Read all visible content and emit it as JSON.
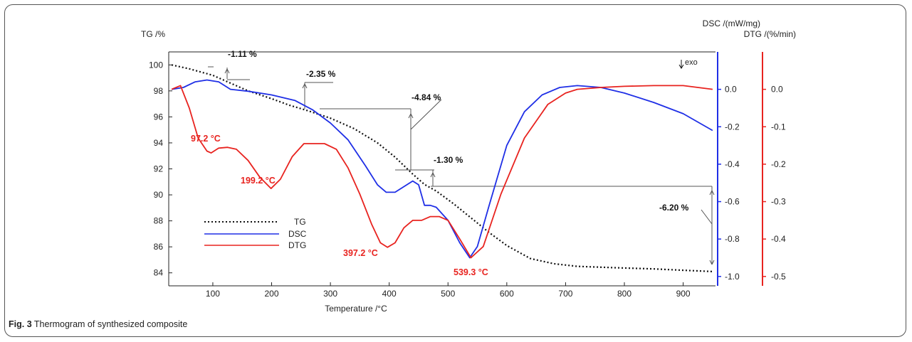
{
  "caption": {
    "label": "Fig. 3",
    "text": "Thermogram of synthesized composite"
  },
  "colors": {
    "tg": "#111111",
    "dsc": "#1f2fe6",
    "dtg": "#e8231f",
    "axis": "#222222"
  },
  "chart_data": {
    "type": "line",
    "xlabel": "Temperature /°C",
    "x_ticks": [
      100,
      200,
      300,
      400,
      500,
      600,
      700,
      800,
      900
    ],
    "xlim": [
      25,
      955
    ],
    "axes": {
      "tg": {
        "label": "TG /%",
        "ylim": [
          83,
          101
        ],
        "ticks": [
          84,
          86,
          88,
          90,
          92,
          94,
          96,
          98,
          100
        ]
      },
      "dsc": {
        "label": "DSC /(mW/mg)",
        "ylim": [
          -1.05,
          0.2
        ],
        "ticks": [
          0.0,
          -0.2,
          -0.4,
          -0.6,
          -0.8,
          -1.0
        ],
        "tick_labels": [
          "0.0",
          "-0.2",
          "-0.4",
          "-0.6",
          "-0.8",
          "-1.0"
        ]
      },
      "dtg": {
        "label": "DTG /(%/min)",
        "ylim": [
          -0.525,
          0.1
        ],
        "ticks": [
          0.0,
          -0.1,
          -0.2,
          -0.3,
          -0.4,
          -0.5
        ],
        "tick_labels": [
          "0.0",
          "-0.1",
          "-0.2",
          "-0.3",
          "-0.4",
          "-0.5"
        ]
      }
    },
    "exo_label": "exo",
    "series": [
      {
        "name": "TG",
        "axis": "tg",
        "style": "dotted",
        "x": [
          30,
          60,
          100,
          130,
          160,
          200,
          230,
          260,
          300,
          340,
          380,
          410,
          440,
          460,
          480,
          510,
          540,
          570,
          600,
          640,
          680,
          720,
          780,
          850,
          900,
          950
        ],
        "y": [
          100.0,
          99.7,
          99.2,
          98.6,
          98.0,
          97.4,
          96.9,
          96.5,
          95.9,
          95.1,
          94.0,
          92.9,
          91.6,
          90.8,
          90.3,
          89.3,
          88.2,
          87.1,
          86.1,
          85.1,
          84.7,
          84.5,
          84.4,
          84.3,
          84.2,
          84.1
        ]
      },
      {
        "name": "DSC",
        "axis": "dsc",
        "style": "solid",
        "x": [
          30,
          50,
          70,
          90,
          110,
          130,
          160,
          200,
          240,
          270,
          300,
          330,
          360,
          380,
          395,
          410,
          425,
          440,
          450,
          460,
          470,
          480,
          500,
          520,
          537,
          550,
          570,
          600,
          630,
          660,
          690,
          720,
          760,
          800,
          850,
          900,
          950
        ],
        "y": [
          0.0,
          0.01,
          0.04,
          0.05,
          0.04,
          0.0,
          -0.01,
          -0.03,
          -0.06,
          -0.11,
          -0.18,
          -0.27,
          -0.41,
          -0.51,
          -0.55,
          -0.55,
          -0.52,
          -0.49,
          -0.51,
          -0.62,
          -0.62,
          -0.63,
          -0.7,
          -0.82,
          -0.9,
          -0.84,
          -0.62,
          -0.3,
          -0.12,
          -0.03,
          0.01,
          0.02,
          0.01,
          -0.02,
          -0.07,
          -0.13,
          -0.22
        ]
      },
      {
        "name": "DTG",
        "axis": "dtg",
        "style": "solid",
        "x": [
          30,
          45,
          60,
          75,
          90,
          97,
          110,
          125,
          140,
          160,
          180,
          199,
          215,
          235,
          255,
          270,
          290,
          310,
          330,
          350,
          370,
          385,
          397,
          410,
          425,
          440,
          455,
          470,
          485,
          500,
          520,
          539,
          560,
          590,
          630,
          670,
          700,
          720,
          760,
          800,
          850,
          900,
          950
        ],
        "y": [
          0.0,
          0.01,
          -0.05,
          -0.13,
          -0.165,
          -0.17,
          -0.157,
          -0.155,
          -0.16,
          -0.19,
          -0.235,
          -0.265,
          -0.24,
          -0.18,
          -0.145,
          -0.145,
          -0.145,
          -0.16,
          -0.21,
          -0.28,
          -0.36,
          -0.41,
          -0.422,
          -0.41,
          -0.37,
          -0.35,
          -0.35,
          -0.34,
          -0.34,
          -0.35,
          -0.4,
          -0.45,
          -0.42,
          -0.28,
          -0.13,
          -0.04,
          -0.01,
          0.0,
          0.005,
          0.008,
          0.01,
          0.01,
          0.0
        ]
      }
    ],
    "peak_labels": [
      {
        "text": "97.2 °C",
        "x": 97.2
      },
      {
        "text": "199.2 °C",
        "x": 199.2
      },
      {
        "text": "397.2 °C",
        "x": 397.2
      },
      {
        "text": "539.3 °C",
        "x": 539.3
      }
    ],
    "mass_losses": [
      "-1.11 %",
      "-2.35 %",
      "-4.84 %",
      "-1.30 %",
      "-6.20 %"
    ],
    "legend": {
      "placement": "bottom-left",
      "items": [
        "TG",
        "DSC",
        "DTG"
      ]
    }
  }
}
